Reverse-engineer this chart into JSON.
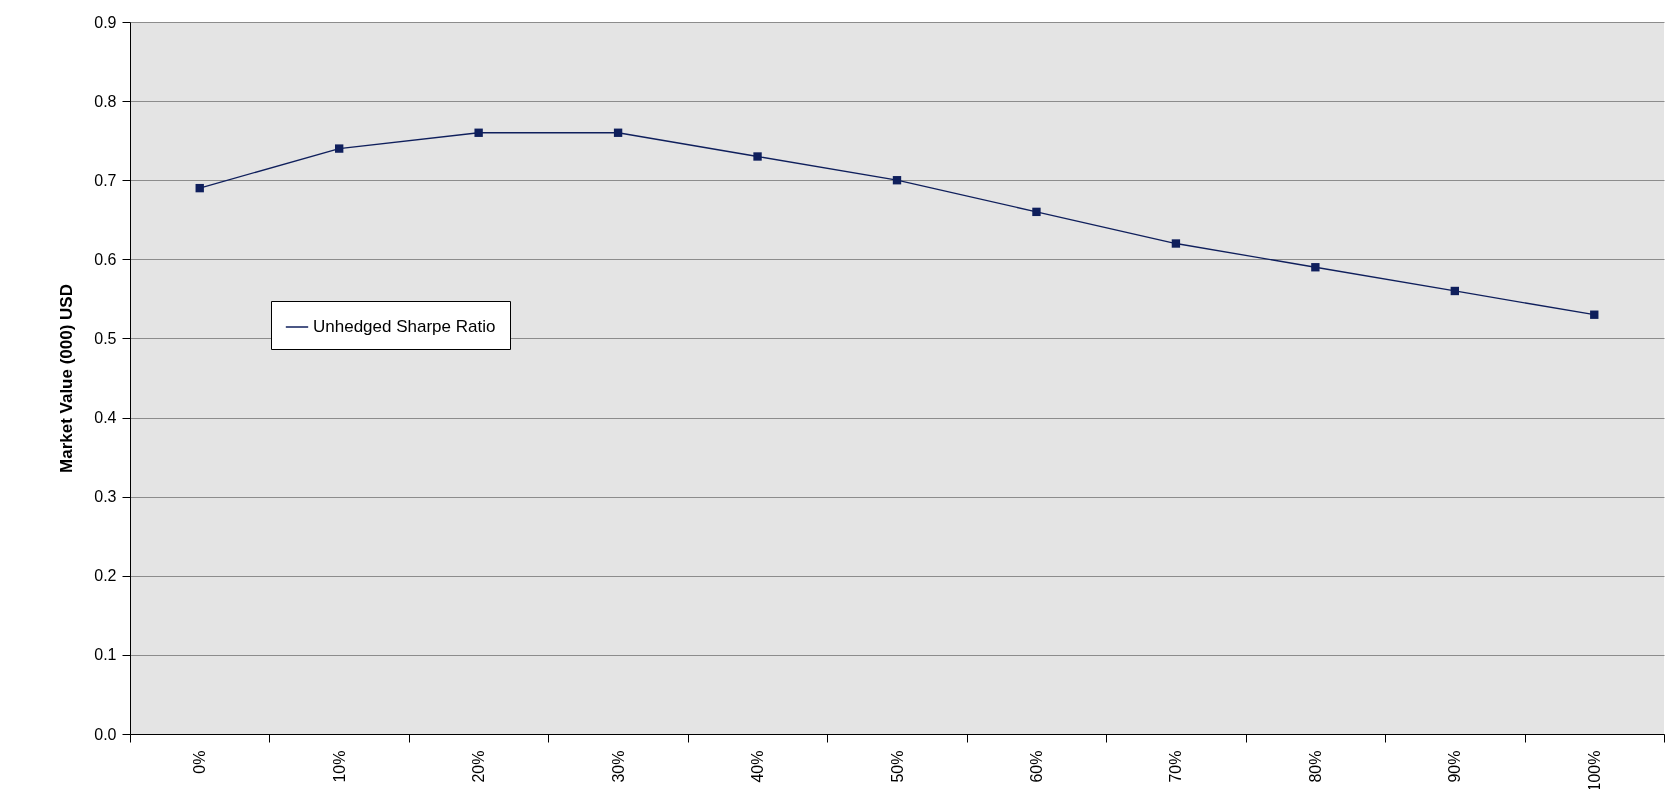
{
  "chart_data": {
    "type": "line",
    "ylabel": "Market Value (000) USD",
    "categories": [
      "0%",
      "10%",
      "20%",
      "30%",
      "40%",
      "50%",
      "60%",
      "70%",
      "80%",
      "90%",
      "100%"
    ],
    "series": [
      {
        "name": "Unhedged Sharpe Ratio",
        "color": "#0f1f5c",
        "values": [
          0.69,
          0.74,
          0.76,
          0.76,
          0.73,
          0.7,
          0.66,
          0.62,
          0.59,
          0.56,
          0.53
        ]
      }
    ],
    "ylim": [
      0,
      0.9
    ],
    "yticks": [
      {
        "value": 0,
        "label": "0.0"
      },
      0.1,
      0.2,
      0.3,
      0.4,
      0.5,
      0.6,
      0.7,
      0.8,
      0.9
    ],
    "grid": "y",
    "legend": "left",
    "marker": "square",
    "line_style": "solid"
  }
}
